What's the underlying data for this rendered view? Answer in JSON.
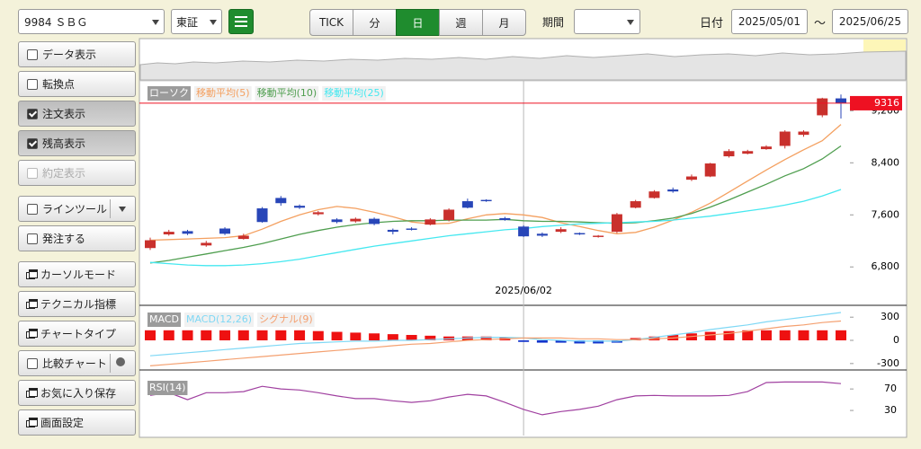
{
  "toolbar": {
    "symbol": "9984 ＳＢＧ",
    "market": "東証",
    "periods": [
      "TICK",
      "分",
      "日",
      "週",
      "月"
    ],
    "active_period": 2,
    "range_label": "期間",
    "date_label": "日付",
    "date_from": "2025/05/01",
    "date_sep": "～",
    "date_to": "2025/06/25"
  },
  "sidebar": [
    {
      "label": "データ表示",
      "kind": "checkbox",
      "checked": false,
      "disabled": false
    },
    {
      "label": "転換点",
      "kind": "checkbox",
      "checked": false,
      "disabled": false
    },
    {
      "label": "注文表示",
      "kind": "checkbox",
      "checked": true,
      "disabled": false
    },
    {
      "label": "残高表示",
      "kind": "checkbox",
      "checked": true,
      "disabled": false
    },
    {
      "label": "約定表示",
      "kind": "checkbox",
      "checked": false,
      "disabled": true
    },
    {
      "label": "ラインツール",
      "kind": "checkbox",
      "checked": false,
      "disabled": false,
      "extra": "dropdown"
    },
    {
      "label": "発注する",
      "kind": "checkbox",
      "checked": false,
      "disabled": false
    },
    {
      "label": "カーソルモード",
      "kind": "window",
      "checked": false,
      "disabled": false
    },
    {
      "label": "テクニカル指標",
      "kind": "window",
      "checked": false,
      "disabled": false
    },
    {
      "label": "チャートタイプ",
      "kind": "window",
      "checked": false,
      "disabled": false
    },
    {
      "label": "比較チャート",
      "kind": "checkbox",
      "checked": false,
      "disabled": false,
      "extra": "gear"
    },
    {
      "label": "お気に入り保存",
      "kind": "window",
      "checked": false,
      "disabled": false
    },
    {
      "label": "画面設定",
      "kind": "window",
      "checked": false,
      "disabled": false
    }
  ],
  "chart_data": [
    {
      "type": "candlestick",
      "candle_name": "ローソク",
      "up_color": "#c9302c",
      "down_color": "#2846b8",
      "categories": [
        null,
        null,
        null,
        null,
        null,
        null,
        null,
        null,
        null,
        null,
        null,
        null,
        null,
        null,
        null,
        null,
        null,
        null,
        null,
        null,
        "2025/06/02",
        null,
        null,
        null,
        null,
        null,
        null,
        null,
        null,
        null,
        null,
        null,
        null,
        null,
        null,
        null,
        null,
        null
      ],
      "open": [
        7090,
        7300,
        7350,
        7130,
        7390,
        7230,
        7700,
        7860,
        7740,
        7610,
        7530,
        7500,
        7540,
        7370,
        7390,
        7450,
        7520,
        7810,
        7830,
        7550,
        7420,
        7310,
        7340,
        7320,
        7260,
        7340,
        7710,
        7860,
        7990,
        8140,
        8190,
        8500,
        8540,
        8610,
        8660,
        8830,
        9130,
        9390
      ],
      "high": [
        7250,
        7370,
        7370,
        7200,
        7410,
        7310,
        7720,
        7890,
        7760,
        7660,
        7550,
        7560,
        7560,
        7390,
        7410,
        7550,
        7700,
        7850,
        7840,
        7570,
        7440,
        7330,
        7410,
        7330,
        7290,
        7630,
        7830,
        7980,
        8020,
        8220,
        8400,
        8610,
        8600,
        8670,
        8900,
        8900,
        9400,
        9450
      ],
      "low": [
        7060,
        7280,
        7290,
        7110,
        7290,
        7220,
        7480,
        7740,
        7690,
        7590,
        7470,
        7480,
        7440,
        7300,
        7360,
        7440,
        7500,
        7700,
        7800,
        7510,
        7260,
        7260,
        7320,
        7290,
        7250,
        7320,
        7700,
        7850,
        7940,
        8120,
        8180,
        8480,
        8530,
        8600,
        8620,
        8800,
        9100,
        9080
      ],
      "close": [
        7210,
        7340,
        7310,
        7170,
        7310,
        7280,
        7490,
        7780,
        7710,
        7640,
        7490,
        7540,
        7460,
        7340,
        7370,
        7530,
        7680,
        7710,
        7810,
        7520,
        7270,
        7280,
        7380,
        7300,
        7280,
        7610,
        7810,
        7960,
        7960,
        8190,
        8390,
        8580,
        8580,
        8650,
        8880,
        8880,
        9390,
        9316
      ],
      "series": [
        {
          "name": "移動平均(5)",
          "color": "#f4a060",
          "values": [
            7210,
            7220,
            7230,
            7240,
            7250,
            7280,
            7380,
            7500,
            7600,
            7680,
            7730,
            7700,
            7640,
            7570,
            7490,
            7460,
            7470,
            7540,
            7600,
            7620,
            7600,
            7560,
            7480,
            7420,
            7360,
            7310,
            7330,
            7410,
            7520,
            7640,
            7780,
            7950,
            8120,
            8290,
            8450,
            8600,
            8740,
            8990
          ]
        },
        {
          "name": "移動平均(10)",
          "color": "#4f9e4f",
          "values": [
            6860,
            6900,
            6950,
            7000,
            7050,
            7100,
            7160,
            7230,
            7300,
            7360,
            7410,
            7450,
            7480,
            7500,
            7510,
            7510,
            7520,
            7520,
            7520,
            7530,
            7510,
            7500,
            7500,
            7490,
            7480,
            7470,
            7480,
            7510,
            7550,
            7620,
            7720,
            7830,
            7950,
            8070,
            8200,
            8310,
            8460,
            8660
          ]
        },
        {
          "name": "移動平均(25)",
          "color": "#45e8f0",
          "values": [
            6870,
            6850,
            6830,
            6820,
            6820,
            6830,
            6850,
            6880,
            6920,
            6970,
            7020,
            7070,
            7120,
            7160,
            7200,
            7240,
            7280,
            7310,
            7340,
            7370,
            7390,
            7420,
            7440,
            7460,
            7470,
            7480,
            7490,
            7500,
            7520,
            7550,
            7580,
            7620,
            7660,
            7700,
            7750,
            7810,
            7890,
            7990
          ]
        }
      ],
      "ylim": [
        6210,
        9660
      ],
      "yticks": [
        {
          "value": 6800,
          "label": "6,800"
        },
        {
          "value": 7600,
          "label": "7,600"
        },
        {
          "value": 8400,
          "label": "8,400"
        },
        {
          "value": 9200,
          "label": "9,200"
        }
      ],
      "last_price": 9316,
      "last_price_color": "#ee1122"
    },
    {
      "type": "macd",
      "legend_title": "MACD",
      "histogram": {
        "pos_color": "#ee1111",
        "neg_color": "#1133cc",
        "values": [
          130,
          130,
          130,
          130,
          130,
          130,
          130,
          130,
          130,
          120,
          110,
          100,
          90,
          80,
          70,
          60,
          50,
          50,
          50,
          40,
          -20,
          -30,
          -30,
          -40,
          -40,
          -30,
          30,
          50,
          70,
          90,
          110,
          120,
          130,
          130,
          130,
          130,
          130,
          130
        ]
      },
      "series": [
        {
          "name": "MACD(12,26)",
          "color": "#7fd8f5",
          "values": [
            -200,
            -180,
            -160,
            -140,
            -120,
            -100,
            -80,
            -60,
            -40,
            -30,
            -20,
            -10,
            -10,
            0,
            0,
            10,
            20,
            30,
            40,
            40,
            30,
            10,
            0,
            -10,
            -10,
            -10,
            10,
            40,
            70,
            100,
            140,
            170,
            200,
            240,
            270,
            300,
            330,
            360
          ]
        },
        {
          "name": "シグナル(9)",
          "color": "#f4a070",
          "values": [
            -330,
            -310,
            -290,
            -270,
            -250,
            -230,
            -210,
            -190,
            -170,
            -150,
            -130,
            -110,
            -90,
            -70,
            -50,
            -40,
            -20,
            0,
            10,
            20,
            30,
            30,
            30,
            20,
            20,
            10,
            10,
            20,
            30,
            50,
            70,
            90,
            120,
            150,
            180,
            200,
            230,
            250
          ]
        }
      ],
      "ylim": [
        -360,
        430
      ],
      "yticks": [
        -300,
        0,
        300
      ]
    },
    {
      "type": "rsi",
      "series": [
        {
          "name": "RSI(14)",
          "color": "#a040a0",
          "values": [
            58,
            63,
            50,
            63,
            63,
            65,
            75,
            70,
            68,
            63,
            57,
            52,
            52,
            48,
            45,
            48,
            55,
            60,
            57,
            45,
            32,
            22,
            28,
            32,
            38,
            50,
            57,
            58,
            57,
            57,
            57,
            58,
            65,
            82,
            83,
            83,
            83,
            80
          ]
        }
      ],
      "ylim": [
        -15,
        102
      ],
      "yticks": [
        30,
        70
      ]
    }
  ]
}
